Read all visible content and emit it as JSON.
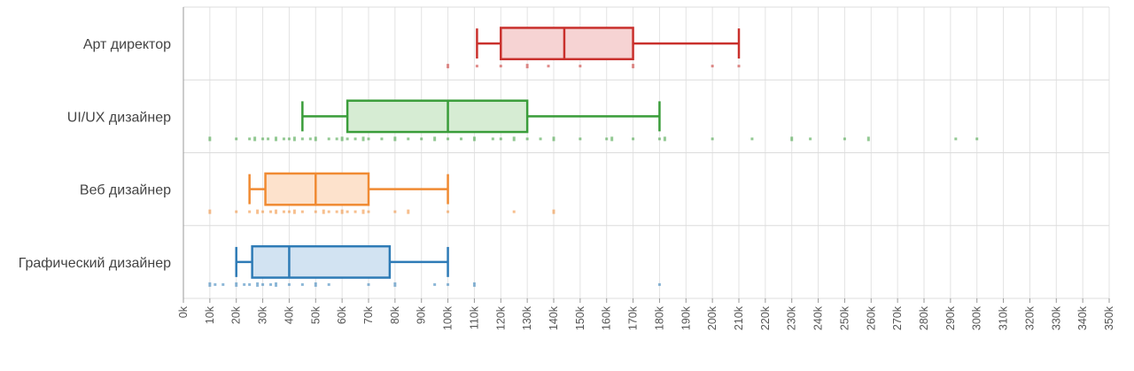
{
  "chart_data": {
    "type": "boxplot",
    "x_unit": "k",
    "xlim": [
      0,
      350
    ],
    "x_tick_step": 10,
    "grid": true,
    "categories": [
      "Арт директор",
      "UI/UX дизайнер",
      "Веб дизайнер",
      "Графический дизайнер"
    ],
    "series": [
      {
        "category": "Арт директор",
        "color": "#c9302c",
        "fill": "#f6d3d3",
        "min": 111,
        "q1": 120,
        "median": 144,
        "q3": 170,
        "max": 210,
        "points": [
          100,
          111,
          120,
          130,
          138,
          150,
          170,
          200,
          210
        ]
      },
      {
        "category": "UI/UX дизайнер",
        "color": "#3a9d3a",
        "fill": "#d6ecd3",
        "min": 45,
        "q1": 62,
        "median": 100,
        "q3": 130,
        "max": 180,
        "points": [
          10,
          20,
          25,
          27,
          30,
          32,
          35,
          38,
          40,
          42,
          45,
          48,
          50,
          55,
          58,
          60,
          62,
          65,
          68,
          70,
          75,
          80,
          85,
          90,
          95,
          100,
          105,
          110,
          117,
          120,
          125,
          130,
          135,
          140,
          150,
          160,
          162,
          170,
          180,
          182,
          200,
          215,
          230,
          237,
          250,
          259,
          292,
          300
        ]
      },
      {
        "category": "Веб дизайнер",
        "color": "#f08a32",
        "fill": "#fde2cc",
        "min": 25,
        "q1": 31,
        "median": 50,
        "q3": 70,
        "max": 100,
        "points": [
          10,
          20,
          25,
          28,
          30,
          33,
          35,
          38,
          40,
          42,
          45,
          50,
          53,
          55,
          58,
          60,
          62,
          65,
          68,
          70,
          80,
          85,
          100,
          125,
          140
        ]
      },
      {
        "category": "Графический дизайнер",
        "color": "#2e7bb6",
        "fill": "#d2e3f2",
        "min": 20,
        "q1": 26,
        "median": 40,
        "q3": 78,
        "max": 100,
        "points": [
          10,
          12,
          15,
          20,
          23,
          25,
          28,
          30,
          33,
          35,
          40,
          45,
          50,
          55,
          70,
          80,
          95,
          100,
          110,
          180
        ]
      }
    ]
  }
}
